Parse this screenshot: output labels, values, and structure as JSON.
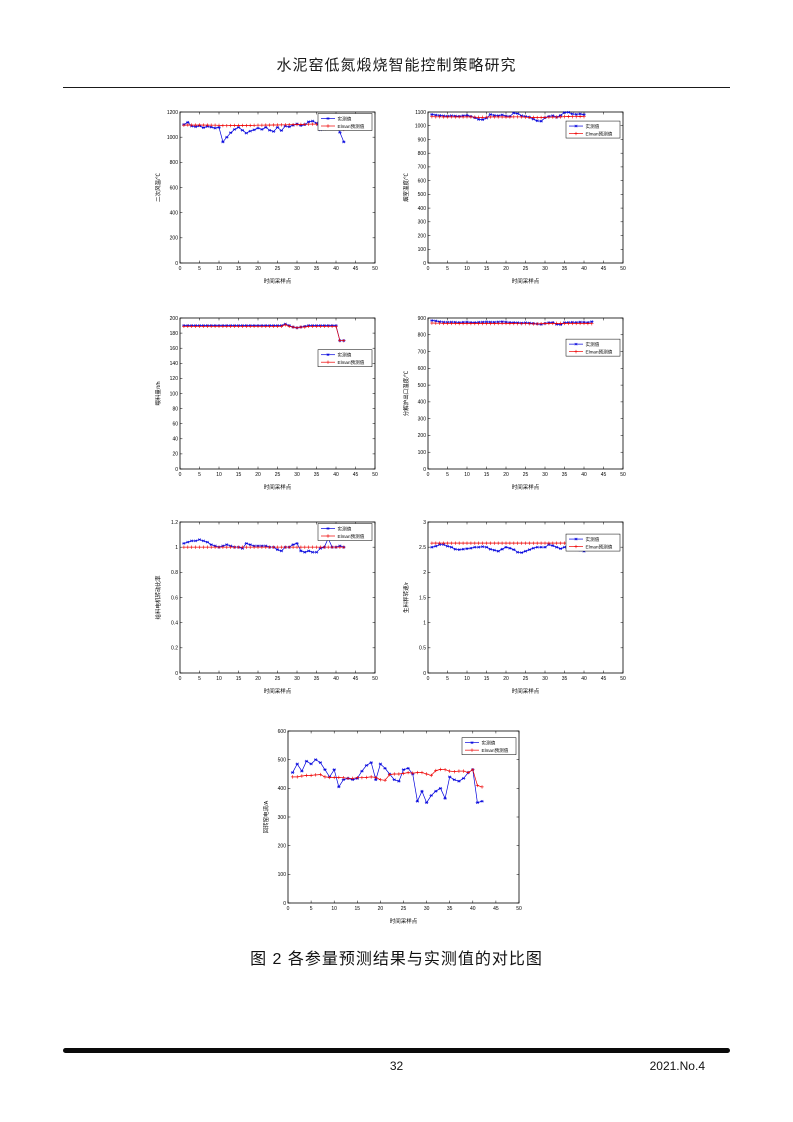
{
  "page": {
    "header_title": "水泥窑低氮煅烧智能控制策略研究",
    "caption": "图 2 各参量预测结果与实测值的对比图",
    "footer": {
      "page_number": "32",
      "issue": "2021.No.4"
    }
  },
  "colors": {
    "measured": "#0000dd",
    "predicted": "#ee0000",
    "axis": "#000000"
  },
  "chart_data": [
    {
      "id": "chart-secondary-air-temperature",
      "type": "line",
      "ylabel": "二次风温/℃",
      "xlabel": "时间采样点",
      "xlim": [
        0,
        50
      ],
      "ylim": [
        0,
        1200
      ],
      "xtick_step": 5,
      "ytick_step": 200,
      "grid": false,
      "legend_position": "top-right",
      "legend_pos": 0.0,
      "x_start": 1,
      "series": [
        {
          "name": "实测值",
          "color": "#0000dd",
          "marker": "star",
          "y": [
            1100,
            1118,
            1088,
            1082,
            1090,
            1075,
            1085,
            1080,
            1072,
            1078,
            962,
            1000,
            1035,
            1062,
            1078,
            1055,
            1032,
            1048,
            1058,
            1072,
            1062,
            1078,
            1055,
            1045,
            1078,
            1052,
            1088,
            1082,
            1095,
            1105,
            1092,
            1100,
            1122,
            1128,
            1112,
            1058,
            1062,
            1068,
            1092,
            1098,
            1038,
            962
          ]
        },
        {
          "name": "Elman预测值",
          "color": "#ee0000",
          "marker": "plus",
          "y": [
            1095,
            1097,
            1096,
            1096,
            1097,
            1096,
            1096,
            1095,
            1095,
            1094,
            1092,
            1091,
            1092,
            1093,
            1093,
            1093,
            1092,
            1093,
            1094,
            1095,
            1095,
            1096,
            1096,
            1097,
            1097,
            1098,
            1098,
            1099,
            1099,
            1100,
            1101,
            1102,
            1103,
            1104,
            1103,
            1100,
            1099,
            1099,
            1101,
            1104,
            1088,
            1062
          ]
        }
      ]
    },
    {
      "id": "chart-smoke-chamber-temperature",
      "type": "line",
      "ylabel": "烟室温度/℃",
      "xlabel": "时间采样点",
      "xlim": [
        0,
        50
      ],
      "ylim": [
        0,
        1100
      ],
      "xtick_step": 5,
      "ytick_step": 100,
      "grid": false,
      "legend_position": "top-right",
      "legend_pos": 0.05,
      "x_start": 1,
      "series": [
        {
          "name": "实测值",
          "color": "#0000dd",
          "marker": "star",
          "y": [
            1082,
            1078,
            1075,
            1072,
            1070,
            1073,
            1071,
            1069,
            1073,
            1076,
            1068,
            1058,
            1046,
            1044,
            1056,
            1082,
            1076,
            1073,
            1079,
            1071,
            1069,
            1093,
            1088,
            1073,
            1068,
            1062,
            1048,
            1036,
            1033,
            1058,
            1068,
            1073,
            1062,
            1076,
            1096,
            1098,
            1086,
            1083,
            1086,
            1081
          ]
        },
        {
          "name": "Elman预测值",
          "color": "#ee0000",
          "marker": "plus",
          "y": [
            1066,
            1065,
            1065,
            1064,
            1064,
            1065,
            1064,
            1064,
            1064,
            1065,
            1064,
            1062,
            1061,
            1061,
            1062,
            1064,
            1064,
            1064,
            1064,
            1063,
            1063,
            1065,
            1065,
            1064,
            1062,
            1061,
            1060,
            1059,
            1059,
            1061,
            1062,
            1063,
            1063,
            1064,
            1066,
            1067,
            1066,
            1066,
            1067,
            1066
          ]
        }
      ]
    },
    {
      "id": "chart-feed-rate",
      "type": "line",
      "ylabel": "喂料量/t/h",
      "xlabel": "时间采样点",
      "xlim": [
        0,
        50
      ],
      "ylim": [
        0,
        200
      ],
      "xtick_step": 5,
      "ytick_step": 20,
      "grid": false,
      "legend_position": "right",
      "legend_pos": 0.2,
      "x_start": 1,
      "series": [
        {
          "name": "实测值",
          "color": "#0000dd",
          "marker": "star",
          "y": [
            190,
            190,
            190,
            190,
            190,
            190,
            190,
            190,
            190,
            190,
            190,
            190,
            190,
            190,
            190,
            190,
            190,
            190,
            190,
            190,
            190,
            190,
            190,
            190,
            190,
            190,
            192,
            190,
            188,
            187,
            188,
            189,
            190,
            190,
            190,
            190,
            190,
            190,
            190,
            190,
            170,
            170
          ]
        },
        {
          "name": "Elman预测值",
          "color": "#ee0000",
          "marker": "plus",
          "y": [
            189,
            189,
            189,
            189,
            189,
            189,
            189,
            189,
            189,
            189,
            189,
            189,
            189,
            189,
            189,
            189,
            189,
            189,
            189,
            189,
            189,
            189,
            189,
            189,
            189,
            189,
            191,
            189,
            188,
            187,
            188,
            188,
            189,
            189,
            189,
            189,
            189,
            189,
            189,
            189,
            170,
            170
          ]
        }
      ]
    },
    {
      "id": "chart-calciner-outlet-temperature",
      "type": "line",
      "ylabel": "分解炉出口温度/℃",
      "xlabel": "时间采样点",
      "xlim": [
        0,
        50
      ],
      "ylim": [
        0,
        900
      ],
      "xtick_step": 5,
      "ytick_step": 100,
      "grid": false,
      "legend_position": "top-right",
      "legend_pos": 0.13,
      "x_start": 1,
      "series": [
        {
          "name": "实测值",
          "color": "#0000dd",
          "marker": "star",
          "y": [
            885,
            883,
            878,
            876,
            875,
            876,
            875,
            874,
            875,
            876,
            874,
            873,
            875,
            876,
            877,
            876,
            875,
            877,
            878,
            876,
            874,
            873,
            872,
            870,
            872,
            870,
            868,
            865,
            862,
            868,
            872,
            874,
            862,
            860,
            872,
            874,
            875,
            874,
            876,
            875,
            874,
            878
          ]
        },
        {
          "name": "Elman预测值",
          "color": "#ee0000",
          "marker": "plus",
          "y": [
            870,
            869,
            869,
            868,
            868,
            868,
            868,
            867,
            867,
            867,
            867,
            867,
            867,
            867,
            867,
            867,
            867,
            868,
            868,
            868,
            867,
            867,
            866,
            866,
            866,
            866,
            865,
            865,
            866,
            867,
            868,
            868,
            868,
            868,
            868,
            868,
            868,
            868,
            868,
            868,
            867,
            866
          ]
        }
      ]
    },
    {
      "id": "chart-feeder-motor-rotation-ratio",
      "type": "line",
      "ylabel": "给料电机转动比率",
      "xlabel": "时间采样点",
      "xlim": [
        0,
        50
      ],
      "ylim": [
        0,
        1.2
      ],
      "xtick_step": 5,
      "ytick_step": 0.2,
      "grid": false,
      "legend_position": "top-right",
      "legend_pos": 0.0,
      "x_start": 1,
      "series": [
        {
          "name": "实测值",
          "color": "#0000dd",
          "marker": "star",
          "y": [
            1.03,
            1.04,
            1.05,
            1.05,
            1.06,
            1.05,
            1.04,
            1.02,
            1.01,
            1.0,
            1.01,
            1.02,
            1.01,
            1.0,
            1.0,
            0.99,
            1.03,
            1.02,
            1.01,
            1.01,
            1.01,
            1.01,
            1.0,
            1.0,
            0.98,
            0.97,
            1.0,
            1.0,
            1.02,
            1.03,
            0.97,
            0.96,
            0.97,
            0.96,
            0.96,
            0.99,
            1.0,
            1.07,
            1.0,
            1.0,
            1.01,
            1.0
          ]
        },
        {
          "name": "Elman预测值",
          "color": "#ee0000",
          "marker": "plus",
          "y": [
            1.0,
            1.0,
            1.0,
            1.0,
            1.0,
            1.0,
            1.0,
            1.0,
            1.0,
            1.0,
            1.0,
            1.0,
            1.0,
            1.0,
            1.0,
            1.0,
            1.0,
            1.0,
            1.0,
            1.0,
            1.0,
            1.0,
            1.0,
            1.0,
            1.0,
            1.0,
            1.0,
            1.0,
            1.0,
            1.0,
            1.0,
            1.0,
            1.0,
            1.0,
            1.0,
            1.0,
            1.0,
            1.0,
            1.0,
            1.0,
            1.0,
            1.0
          ]
        }
      ]
    },
    {
      "id": "chart-raw-meal-scale-speed",
      "type": "line",
      "ylabel": "生料秤转速/r",
      "xlabel": "时间采样点",
      "xlim": [
        0,
        50
      ],
      "ylim": [
        0,
        3
      ],
      "xtick_step": 5,
      "ytick_step": 0.5,
      "grid": false,
      "legend_position": "top-right",
      "legend_pos": 0.07,
      "x_start": 1,
      "series": [
        {
          "name": "实测值",
          "color": "#0000dd",
          "marker": "star",
          "y": [
            2.5,
            2.52,
            2.55,
            2.55,
            2.52,
            2.5,
            2.46,
            2.45,
            2.46,
            2.47,
            2.48,
            2.5,
            2.5,
            2.51,
            2.5,
            2.46,
            2.44,
            2.42,
            2.46,
            2.5,
            2.48,
            2.45,
            2.4,
            2.39,
            2.42,
            2.45,
            2.48,
            2.5,
            2.5,
            2.5,
            2.55,
            2.53,
            2.5,
            2.47,
            2.5,
            2.52,
            2.5,
            2.45,
            2.44,
            2.42,
            2.5,
            2.55
          ]
        },
        {
          "name": "Elman预测值",
          "color": "#ee0000",
          "marker": "plus",
          "y": [
            2.58,
            2.58,
            2.58,
            2.58,
            2.58,
            2.58,
            2.58,
            2.58,
            2.58,
            2.58,
            2.58,
            2.58,
            2.58,
            2.58,
            2.58,
            2.58,
            2.58,
            2.58,
            2.58,
            2.58,
            2.58,
            2.58,
            2.58,
            2.58,
            2.58,
            2.58,
            2.58,
            2.58,
            2.58,
            2.58,
            2.58,
            2.58,
            2.58,
            2.58,
            2.58,
            2.58,
            2.58,
            2.58,
            2.58,
            2.58,
            2.58,
            2.58
          ]
        }
      ]
    },
    {
      "id": "chart-rotary-kiln-current",
      "type": "line",
      "ylabel": "回转窑电流/A",
      "xlabel": "时间采样点",
      "xlim": [
        0,
        50
      ],
      "ylim": [
        0,
        600
      ],
      "xtick_step": 5,
      "ytick_step": 100,
      "grid": false,
      "legend_position": "top-right",
      "legend_pos": 0.03,
      "x_start": 1,
      "series": [
        {
          "name": "实测值",
          "color": "#0000dd",
          "marker": "star",
          "y": [
            455,
            485,
            460,
            495,
            485,
            500,
            490,
            465,
            440,
            465,
            405,
            430,
            435,
            430,
            435,
            460,
            480,
            490,
            430,
            485,
            470,
            450,
            430,
            425,
            465,
            470,
            450,
            355,
            390,
            350,
            375,
            390,
            400,
            365,
            440,
            430,
            425,
            435,
            455,
            465,
            350,
            355
          ]
        },
        {
          "name": "Elman预测值",
          "color": "#ee0000",
          "marker": "plus",
          "y": [
            440,
            440,
            443,
            445,
            445,
            447,
            448,
            440,
            438,
            438,
            438,
            437,
            435,
            435,
            437,
            437,
            438,
            440,
            438,
            430,
            428,
            448,
            450,
            450,
            452,
            455,
            453,
            455,
            455,
            450,
            445,
            462,
            466,
            465,
            460,
            458,
            460,
            460,
            455,
            465,
            410,
            405
          ]
        }
      ]
    }
  ]
}
